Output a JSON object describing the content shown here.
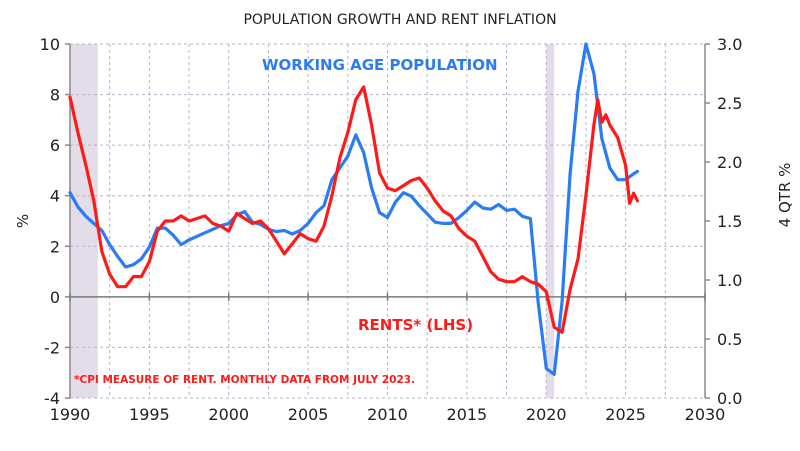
{
  "chart_data": {
    "type": "line",
    "title": "POPULATION GROWTH AND RENT INFLATION",
    "xlabel": "",
    "ylabel_left": "%",
    "ylabel_right": "4 QTR %",
    "xlim": [
      1990,
      2030
    ],
    "ylim_left": [
      -4,
      10
    ],
    "ylim_right": [
      0.0,
      3.0
    ],
    "x_ticks": [
      "1990",
      "1995",
      "2000",
      "2005",
      "2010",
      "2015",
      "2020",
      "2025",
      "2030"
    ],
    "y_ticks_left": [
      "10",
      "8",
      "6",
      "4",
      "2",
      "0",
      "-2",
      "-4"
    ],
    "y_ticks_right": [
      "3.0",
      "2.5",
      "2.0",
      "1.5",
      "1.0",
      "0.5",
      "0.0"
    ],
    "grid": true,
    "shaded_periods": [
      [
        1990.0,
        1991.75
      ],
      [
        2020.0,
        2020.5
      ]
    ],
    "annotations": {
      "working_age": "WORKING AGE POPULATION",
      "rents": "RENTS* (LHS)",
      "footnote": "*CPI MEASURE OF RENT.  MONTHLY DATA FROM JULY 2023."
    },
    "series": [
      {
        "name": "RENTS* (LHS)",
        "axis": "left",
        "color": "#ff1a1a",
        "x": [
          1990.0,
          1990.5,
          1991.0,
          1991.5,
          1992.0,
          1992.5,
          1993.0,
          1993.5,
          1994.0,
          1994.5,
          1995.0,
          1995.5,
          1996.0,
          1996.5,
          1997.0,
          1997.5,
          1998.0,
          1998.5,
          1999.0,
          1999.5,
          2000.0,
          2000.5,
          2001.0,
          2001.5,
          2002.0,
          2002.5,
          2003.0,
          2003.5,
          2004.0,
          2004.5,
          2005.0,
          2005.5,
          2006.0,
          2006.5,
          2007.0,
          2007.5,
          2008.0,
          2008.5,
          2009.0,
          2009.5,
          2010.0,
          2010.5,
          2011.0,
          2011.5,
          2012.0,
          2012.5,
          2013.0,
          2013.5,
          2014.0,
          2014.5,
          2015.0,
          2015.5,
          2016.0,
          2016.5,
          2017.0,
          2017.5,
          2018.0,
          2018.5,
          2019.0,
          2019.5,
          2020.0,
          2020.5,
          2021.0,
          2021.5,
          2022.0,
          2022.5,
          2023.0,
          2023.25,
          2023.5,
          2023.75,
          2024.0,
          2024.5,
          2025.0,
          2025.25,
          2025.5,
          2025.75
        ],
        "values": [
          7.9,
          6.5,
          5.2,
          3.8,
          1.8,
          0.9,
          0.4,
          0.4,
          0.8,
          0.8,
          1.4,
          2.6,
          3.0,
          3.0,
          3.2,
          3.0,
          3.1,
          3.2,
          2.9,
          2.8,
          2.6,
          3.3,
          3.1,
          2.9,
          3.0,
          2.7,
          2.2,
          1.7,
          2.1,
          2.5,
          2.3,
          2.2,
          2.8,
          4.0,
          5.5,
          6.5,
          7.8,
          8.3,
          6.8,
          4.9,
          4.3,
          4.2,
          4.4,
          4.6,
          4.7,
          4.3,
          3.8,
          3.4,
          3.2,
          2.7,
          2.4,
          2.2,
          1.6,
          1.0,
          0.7,
          0.6,
          0.6,
          0.8,
          0.6,
          0.5,
          0.2,
          -1.2,
          -1.4,
          0.3,
          1.5,
          4.0,
          6.8,
          7.8,
          6.9,
          7.2,
          6.8,
          6.3,
          5.2,
          3.7,
          4.1,
          3.8
        ]
      },
      {
        "name": "WORKING AGE POPULATION (RHS)",
        "axis": "right",
        "color": "#2a7bf4",
        "x": [
          1990.0,
          1990.5,
          1991.0,
          1991.5,
          1992.0,
          1992.5,
          1993.0,
          1993.5,
          1994.0,
          1994.5,
          1995.0,
          1995.5,
          1996.0,
          1996.5,
          1997.0,
          1997.5,
          1998.0,
          1998.5,
          1999.0,
          1999.5,
          2000.0,
          2000.5,
          2001.0,
          2001.5,
          2002.0,
          2002.5,
          2003.0,
          2003.5,
          2004.0,
          2004.5,
          2005.0,
          2005.5,
          2006.0,
          2006.5,
          2007.0,
          2007.5,
          2008.0,
          2008.5,
          2009.0,
          2009.5,
          2010.0,
          2010.5,
          2011.0,
          2011.5,
          2012.0,
          2012.5,
          2013.0,
          2013.5,
          2014.0,
          2014.5,
          2015.0,
          2015.5,
          2016.0,
          2016.5,
          2017.0,
          2017.5,
          2018.0,
          2018.5,
          2019.0,
          2019.5,
          2020.0,
          2020.5,
          2021.0,
          2021.5,
          2022.0,
          2022.5,
          2023.0,
          2023.5,
          2024.0,
          2024.5,
          2025.0,
          2025.5,
          2025.75
        ],
        "values": [
          1.74,
          1.62,
          1.54,
          1.48,
          1.42,
          1.3,
          1.2,
          1.11,
          1.13,
          1.18,
          1.28,
          1.44,
          1.44,
          1.38,
          1.3,
          1.34,
          1.37,
          1.4,
          1.43,
          1.46,
          1.48,
          1.55,
          1.58,
          1.49,
          1.47,
          1.43,
          1.41,
          1.42,
          1.39,
          1.42,
          1.48,
          1.57,
          1.63,
          1.85,
          1.95,
          2.05,
          2.23,
          2.08,
          1.78,
          1.57,
          1.53,
          1.66,
          1.74,
          1.71,
          1.63,
          1.56,
          1.49,
          1.48,
          1.48,
          1.53,
          1.59,
          1.66,
          1.61,
          1.6,
          1.64,
          1.59,
          1.6,
          1.54,
          1.52,
          0.8,
          0.25,
          0.2,
          0.82,
          1.9,
          2.6,
          3.0,
          2.75,
          2.2,
          1.95,
          1.85,
          1.85,
          1.9,
          1.92
        ]
      }
    ]
  }
}
